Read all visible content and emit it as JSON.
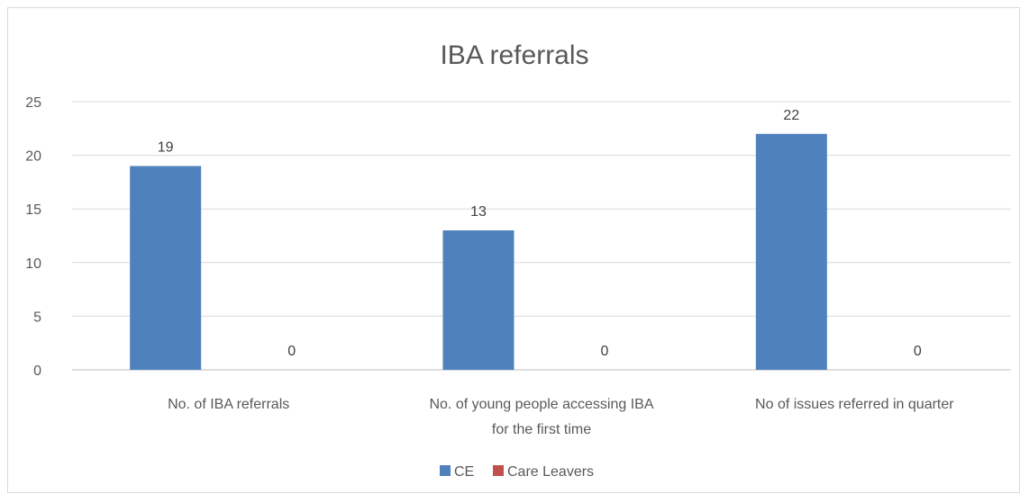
{
  "chart_data": {
    "type": "bar",
    "title": "IBA referrals",
    "categories": [
      [
        "No. of IBA referrals"
      ],
      [
        "No. of young people accessing IBA",
        "for the first time"
      ],
      [
        "No of issues referred in quarter"
      ]
    ],
    "series": [
      {
        "name": "CE",
        "color": "#4f81bd",
        "values": [
          19,
          13,
          22
        ]
      },
      {
        "name": "Care Leavers",
        "color": "#c0504d",
        "values": [
          0,
          0,
          0
        ]
      }
    ],
    "ylim": [
      0,
      25
    ],
    "yticks": [
      0,
      5,
      10,
      15,
      20,
      25
    ],
    "grid": true,
    "legend_position": "bottom"
  }
}
